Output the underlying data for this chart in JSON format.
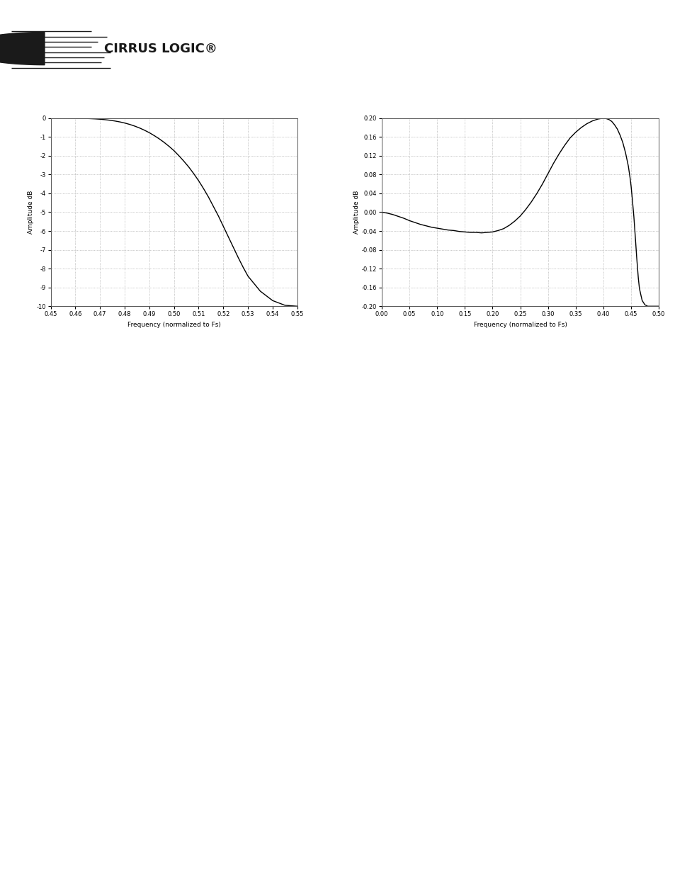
{
  "fig_width": 9.54,
  "fig_height": 12.35,
  "bg_color": "#ffffff",
  "header_bar_color": "#808080",
  "footer_bar_color": "#222222",
  "plot1": {
    "xlabel": "Frequency (normalized to Fs)",
    "ylabel": "Amplitude dB",
    "xlim": [
      0.45,
      0.55
    ],
    "ylim": [
      -10,
      0
    ],
    "xticks": [
      0.45,
      0.46,
      0.47,
      0.48,
      0.49,
      0.5,
      0.51,
      0.52,
      0.53,
      0.54,
      0.55
    ],
    "yticks": [
      0,
      -1,
      -2,
      -3,
      -4,
      -5,
      -6,
      -7,
      -8,
      -9,
      -10
    ],
    "grid_color": "#999999",
    "line_color": "#000000",
    "curve_x": [
      0.45,
      0.452,
      0.454,
      0.456,
      0.458,
      0.46,
      0.462,
      0.464,
      0.466,
      0.468,
      0.47,
      0.472,
      0.474,
      0.476,
      0.478,
      0.48,
      0.482,
      0.484,
      0.486,
      0.488,
      0.49,
      0.492,
      0.494,
      0.496,
      0.498,
      0.5,
      0.502,
      0.504,
      0.506,
      0.508,
      0.51,
      0.512,
      0.514,
      0.516,
      0.518,
      0.52,
      0.522,
      0.524,
      0.526,
      0.528,
      0.53,
      0.535,
      0.54,
      0.545,
      0.55
    ],
    "curve_y": [
      0.0,
      -0.0,
      -0.001,
      -0.002,
      -0.004,
      -0.007,
      -0.012,
      -0.018,
      -0.027,
      -0.04,
      -0.058,
      -0.082,
      -0.113,
      -0.152,
      -0.2,
      -0.26,
      -0.333,
      -0.42,
      -0.522,
      -0.64,
      -0.775,
      -0.93,
      -1.1,
      -1.29,
      -1.5,
      -1.73,
      -2.0,
      -2.29,
      -2.6,
      -2.95,
      -3.33,
      -3.75,
      -4.2,
      -4.7,
      -5.2,
      -5.75,
      -6.3,
      -6.85,
      -7.4,
      -7.92,
      -8.4,
      -9.2,
      -9.7,
      -9.95,
      -10.0
    ]
  },
  "plot2": {
    "xlabel": "Frequency (normalized to Fs)",
    "ylabel": "Amplitude dB",
    "xlim": [
      0.0,
      0.5
    ],
    "ylim": [
      -0.2,
      0.2
    ],
    "xticks": [
      0.0,
      0.05,
      0.1,
      0.15,
      0.2,
      0.25,
      0.3,
      0.35,
      0.4,
      0.45,
      0.5
    ],
    "yticks": [
      -0.2,
      -0.16,
      -0.12,
      -0.08,
      -0.04,
      0.0,
      0.04,
      0.08,
      0.12,
      0.16,
      0.2
    ],
    "grid_color": "#999999",
    "line_color": "#000000",
    "curve_x": [
      0.0,
      0.005,
      0.01,
      0.02,
      0.03,
      0.04,
      0.05,
      0.06,
      0.07,
      0.08,
      0.09,
      0.1,
      0.11,
      0.12,
      0.13,
      0.14,
      0.15,
      0.16,
      0.17,
      0.18,
      0.19,
      0.2,
      0.21,
      0.22,
      0.23,
      0.24,
      0.25,
      0.26,
      0.27,
      0.28,
      0.29,
      0.3,
      0.31,
      0.32,
      0.33,
      0.34,
      0.35,
      0.36,
      0.37,
      0.38,
      0.39,
      0.395,
      0.4,
      0.405,
      0.41,
      0.415,
      0.42,
      0.425,
      0.43,
      0.435,
      0.44,
      0.445,
      0.448,
      0.45,
      0.452,
      0.455,
      0.458,
      0.46,
      0.463,
      0.465,
      0.468,
      0.47,
      0.475,
      0.48,
      0.49,
      0.5
    ],
    "curve_y": [
      0.0,
      -0.001,
      -0.002,
      -0.005,
      -0.009,
      -0.013,
      -0.018,
      -0.022,
      -0.026,
      -0.029,
      -0.032,
      -0.034,
      -0.036,
      -0.038,
      -0.039,
      -0.041,
      -0.042,
      -0.043,
      -0.043,
      -0.044,
      -0.043,
      -0.042,
      -0.039,
      -0.035,
      -0.028,
      -0.019,
      -0.008,
      0.006,
      0.022,
      0.04,
      0.06,
      0.082,
      0.104,
      0.124,
      0.142,
      0.158,
      0.17,
      0.18,
      0.188,
      0.194,
      0.198,
      0.199,
      0.2,
      0.199,
      0.197,
      0.193,
      0.186,
      0.177,
      0.164,
      0.148,
      0.126,
      0.098,
      0.074,
      0.055,
      0.03,
      -0.01,
      -0.06,
      -0.095,
      -0.14,
      -0.162,
      -0.178,
      -0.188,
      -0.197,
      -0.2,
      -0.2,
      -0.2
    ]
  },
  "logo_text": "CIRRUS LOGIC",
  "footer_line_color": "#333333"
}
